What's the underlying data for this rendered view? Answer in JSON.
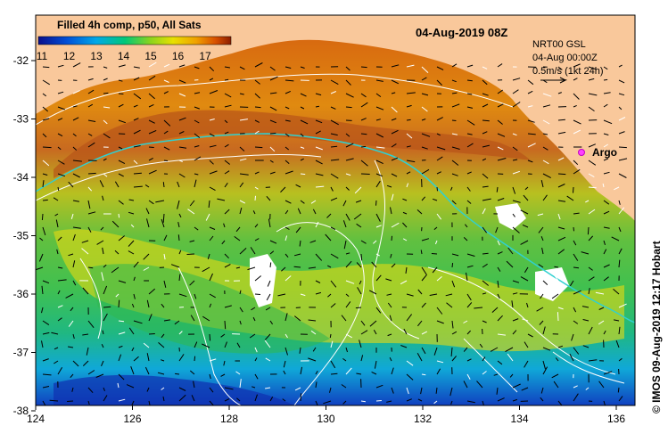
{
  "colorbar": {
    "title": "Filled 4h comp, p50, All Sats",
    "ticks": [
      "11",
      "12",
      "13",
      "14",
      "15",
      "16",
      "17"
    ],
    "colors": [
      "#0a0f8c",
      "#0050d8",
      "#00a8e8",
      "#00c878",
      "#8ad41e",
      "#e8e000",
      "#f0a000",
      "#d85000",
      "#8c1e00"
    ]
  },
  "date_title": "04-Aug-2019 08Z",
  "info": {
    "line1": "NRT00 GSL",
    "line2": "04-Aug 00:00Z",
    "line3": "0.5m/s (1kt 24h)"
  },
  "argo_label": "Argo",
  "credit": "© IMOS 09-Aug-2019 12:17 Hobart",
  "axes": {
    "x_ticks": [
      "124",
      "126",
      "128",
      "130",
      "132",
      "134",
      "136"
    ],
    "y_ticks": [
      "-32",
      "-33",
      "-34",
      "-35",
      "-36",
      "-37",
      "-38"
    ]
  },
  "colors": {
    "land": "#f9c89b",
    "white_contour": "#ffffff",
    "cyan_contour": "#30d0d0"
  }
}
